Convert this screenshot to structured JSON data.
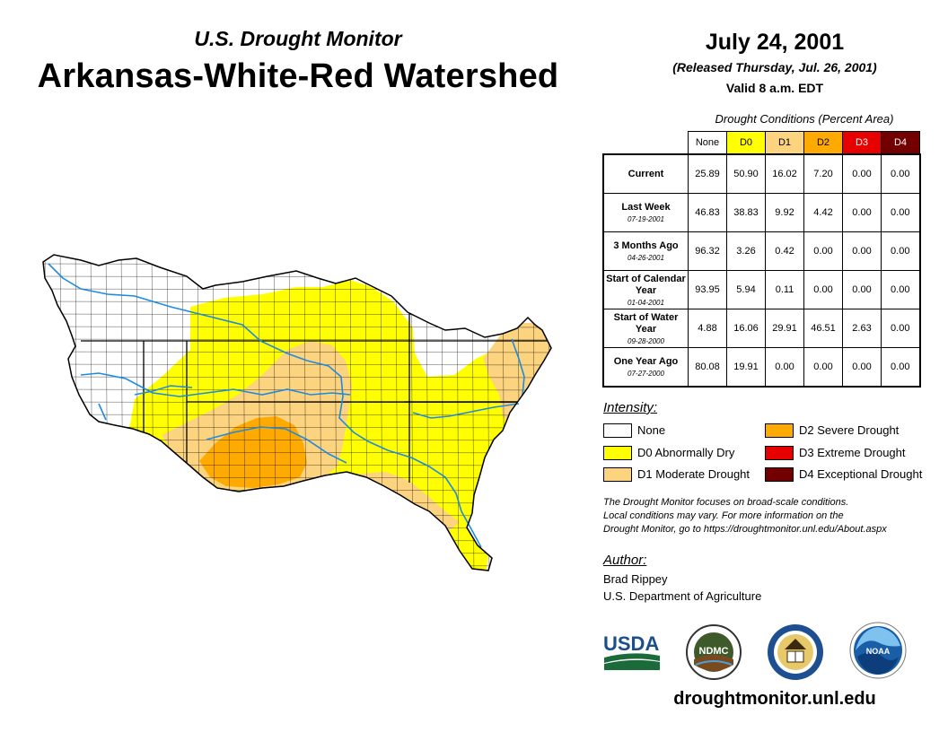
{
  "header": {
    "subtitle": "U.S. Drought Monitor",
    "title": "Arkansas-White-Red Watershed",
    "date": "July 24, 2001",
    "released": "(Released Thursday, Jul. 26, 2001)",
    "valid": "Valid 8 a.m. EDT"
  },
  "conditions": {
    "title": "Drought Conditions (Percent Area)",
    "columns": [
      {
        "label": "None",
        "color": "#ffffff",
        "text_color": "#000000"
      },
      {
        "label": "D0",
        "color": "#ffff00",
        "text_color": "#000000"
      },
      {
        "label": "D1",
        "color": "#fcd37f",
        "text_color": "#000000"
      },
      {
        "label": "D2",
        "color": "#ffaa00",
        "text_color": "#000000"
      },
      {
        "label": "D3",
        "color": "#e60000",
        "text_color": "#ffffff"
      },
      {
        "label": "D4",
        "color": "#730000",
        "text_color": "#ffffff"
      }
    ],
    "rows": [
      {
        "label": "Current",
        "date": "",
        "values": [
          "25.89",
          "50.90",
          "16.02",
          "7.20",
          "0.00",
          "0.00"
        ]
      },
      {
        "label": "Last Week",
        "date": "07-19-2001",
        "values": [
          "46.83",
          "38.83",
          "9.92",
          "4.42",
          "0.00",
          "0.00"
        ]
      },
      {
        "label": "3 Months Ago",
        "date": "04-26-2001",
        "values": [
          "96.32",
          "3.26",
          "0.42",
          "0.00",
          "0.00",
          "0.00"
        ]
      },
      {
        "label": "Start of Calendar Year",
        "date": "01-04-2001",
        "values": [
          "93.95",
          "5.94",
          "0.11",
          "0.00",
          "0.00",
          "0.00"
        ]
      },
      {
        "label": "Start of Water Year",
        "date": "09-28-2000",
        "values": [
          "4.88",
          "16.06",
          "29.91",
          "46.51",
          "2.63",
          "0.00"
        ]
      },
      {
        "label": "One Year Ago",
        "date": "07-27-2000",
        "values": [
          "80.08",
          "19.91",
          "0.00",
          "0.00",
          "0.00",
          "0.00"
        ]
      }
    ]
  },
  "legend": {
    "title": "Intensity:",
    "items": [
      {
        "label": "None",
        "color": "#ffffff"
      },
      {
        "label": "D0 Abnormally Dry",
        "color": "#ffff00"
      },
      {
        "label": "D1 Moderate Drought",
        "color": "#fcd37f"
      },
      {
        "label": "D2 Severe Drought",
        "color": "#ffaa00"
      },
      {
        "label": "D3 Extreme Drought",
        "color": "#e60000"
      },
      {
        "label": "D4 Exceptional Drought",
        "color": "#730000"
      }
    ]
  },
  "note": {
    "line1": "The Drought Monitor focuses on broad-scale conditions.",
    "line2": "Local conditions may vary. For more information on the",
    "line3": "Drought Monitor, go to https://droughtmonitor.unl.edu/About.aspx"
  },
  "author": {
    "label": "Author:",
    "name": "Brad Rippey",
    "org": "U.S. Department of Agriculture"
  },
  "logos": {
    "usda": "USDA",
    "ndmc": "NDMC",
    "noaa": "NOAA"
  },
  "website": "droughtmonitor.unl.edu"
}
